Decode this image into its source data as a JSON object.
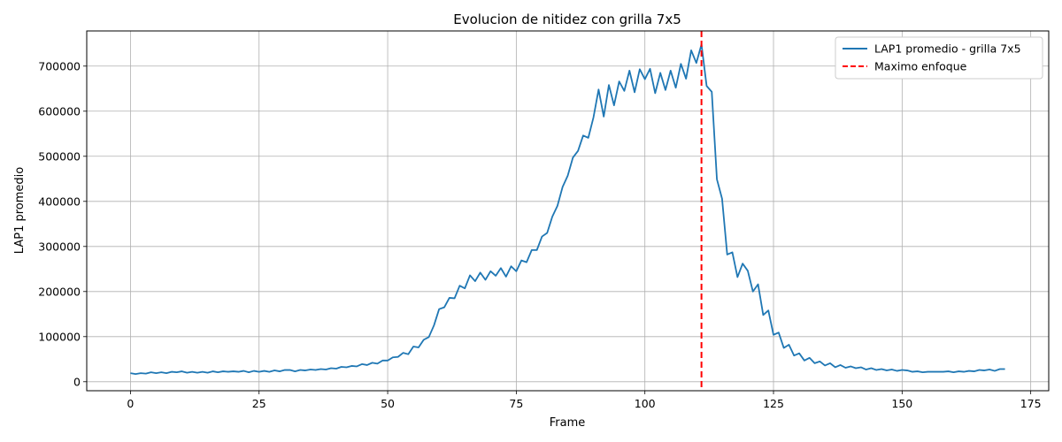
{
  "chart_data": {
    "type": "line",
    "title": "Evolucion de nitidez con grilla 7x5",
    "xlabel": "Frame",
    "ylabel": "LAP1 promedio",
    "xlim": [
      -8.5,
      178.5
    ],
    "ylim": [
      -20000,
      778000
    ],
    "grid": true,
    "legend_position": "top-right",
    "x_ticks": [
      0,
      25,
      50,
      75,
      100,
      125,
      150,
      175
    ],
    "y_ticks": [
      0,
      100000,
      200000,
      300000,
      400000,
      500000,
      600000,
      700000
    ],
    "x_tick_labels": [
      "0",
      "25",
      "50",
      "75",
      "100",
      "125",
      "150",
      "175"
    ],
    "y_tick_labels": [
      "0",
      "100000",
      "200000",
      "300000",
      "400000",
      "500000",
      "600000",
      "700000"
    ],
    "series": [
      {
        "name": "LAP1 promedio - grilla 7x5",
        "color": "#1f77b4",
        "x": [
          0,
          1,
          2,
          3,
          4,
          5,
          6,
          7,
          8,
          9,
          10,
          11,
          12,
          13,
          14,
          15,
          16,
          17,
          18,
          19,
          20,
          21,
          22,
          23,
          24,
          25,
          26,
          27,
          28,
          29,
          30,
          31,
          32,
          33,
          34,
          35,
          36,
          37,
          38,
          39,
          40,
          41,
          42,
          43,
          44,
          45,
          46,
          47,
          48,
          49,
          50,
          51,
          52,
          53,
          54,
          55,
          56,
          57,
          58,
          59,
          60,
          61,
          62,
          63,
          64,
          65,
          66,
          67,
          68,
          69,
          70,
          71,
          72,
          73,
          74,
          75,
          76,
          77,
          78,
          79,
          80,
          81,
          82,
          83,
          84,
          85,
          86,
          87,
          88,
          89,
          90,
          91,
          92,
          93,
          94,
          95,
          96,
          97,
          98,
          99,
          100,
          101,
          102,
          103,
          104,
          105,
          106,
          107,
          108,
          109,
          110,
          111,
          112,
          113,
          114,
          115,
          116,
          117,
          118,
          119,
          120,
          121,
          122,
          123,
          124,
          125,
          126,
          127,
          128,
          129,
          130,
          131,
          132,
          133,
          134,
          135,
          136,
          137,
          138,
          139,
          140,
          141,
          142,
          143,
          144,
          145,
          146,
          147,
          148,
          149,
          150,
          151,
          152,
          153,
          154,
          155,
          156,
          157,
          158,
          159,
          160,
          161,
          162,
          163,
          164,
          165,
          166,
          167,
          168,
          169,
          170
        ],
        "values": [
          19000,
          17000,
          19000,
          18000,
          21000,
          19000,
          21000,
          19000,
          22000,
          21000,
          23000,
          20000,
          22000,
          20000,
          22000,
          20000,
          23000,
          21000,
          23000,
          22000,
          23000,
          22000,
          24000,
          21000,
          24000,
          22000,
          24000,
          22000,
          25000,
          23000,
          26000,
          26000,
          23000,
          26000,
          25000,
          27000,
          26000,
          28000,
          27000,
          30000,
          29000,
          33000,
          32000,
          35000,
          34000,
          39000,
          37000,
          42000,
          40000,
          47000,
          47000,
          54000,
          55000,
          64000,
          61000,
          78000,
          76000,
          93000,
          99000,
          125000,
          161000,
          165000,
          186000,
          185000,
          213000,
          207000,
          236000,
          223000,
          242000,
          226000,
          245000,
          235000,
          252000,
          233000,
          256000,
          245000,
          269000,
          265000,
          292000,
          292000,
          322000,
          330000,
          366000,
          390000,
          432000,
          457000,
          497000,
          512000,
          546000,
          541000,
          586000,
          648000,
          588000,
          658000,
          613000,
          666000,
          645000,
          690000,
          642000,
          693000,
          671000,
          694000,
          640000,
          685000,
          647000,
          690000,
          652000,
          705000,
          672000,
          735000,
          707000,
          748000,
          656000,
          643000,
          449000,
          406000,
          282000,
          287000,
          232000,
          262000,
          246000,
          200000,
          216000,
          148000,
          158000,
          104000,
          109000,
          75000,
          82000,
          58000,
          63000,
          47000,
          53000,
          41000,
          45000,
          36000,
          41000,
          32000,
          37000,
          31000,
          34000,
          30000,
          32000,
          27000,
          30000,
          26000,
          28000,
          25000,
          27000,
          24000,
          26000,
          25000,
          22000,
          23000,
          21000,
          22000,
          22000,
          22000,
          22000,
          23000,
          21000,
          23000,
          22000,
          24000,
          23000,
          26000,
          25000,
          27000,
          24000,
          28000,
          28000
        ]
      }
    ],
    "annotations": [
      {
        "name": "Maximo enfoque",
        "type": "vline",
        "x": 111,
        "color": "#ff0000",
        "linestyle": "dashed"
      }
    ]
  }
}
